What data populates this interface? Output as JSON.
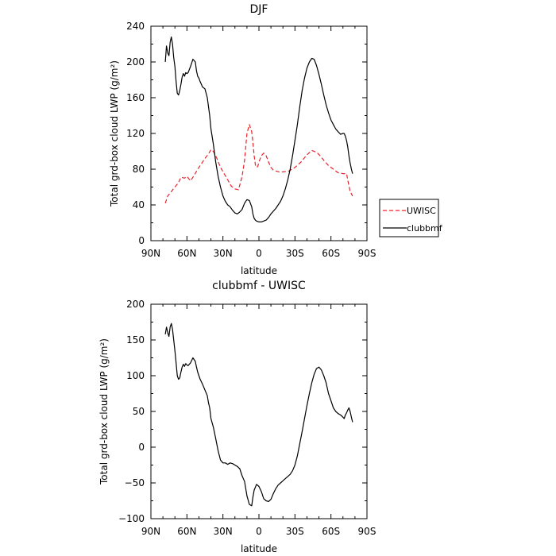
{
  "chart_data": [
    {
      "type": "line",
      "title": "DJF",
      "xlabel": "latitude",
      "ylabel": "Total grd-box cloud LWP (g/m²)",
      "ylim": [
        0,
        240
      ],
      "xlim": [
        90,
        -90
      ],
      "xticks": [
        90,
        60,
        30,
        0,
        -30,
        -60,
        -90
      ],
      "xtick_labels": [
        "90N",
        "60N",
        "30N",
        "0",
        "30S",
        "60S",
        "90S"
      ],
      "yticks": [
        0,
        40,
        80,
        120,
        160,
        200,
        240
      ],
      "ytick_labels": [
        "0",
        "40",
        "80",
        "120",
        "160",
        "200",
        "240"
      ],
      "legend_position": "outside-right",
      "series": [
        {
          "name": "UWISC",
          "color": "#e8232b",
          "dash": "dashed",
          "x": [
            78,
            76,
            73,
            70,
            67,
            65,
            62,
            60,
            57,
            54,
            51,
            48,
            45,
            42,
            40,
            38,
            35,
            32,
            29,
            26,
            23,
            20,
            17,
            14,
            12,
            10,
            8,
            6,
            5,
            4,
            3,
            2,
            1,
            0,
            -2,
            -4,
            -6,
            -8,
            -10,
            -12,
            -14,
            -17,
            -20,
            -25,
            -30,
            -35,
            -40,
            -44,
            -48,
            -51,
            -54,
            -58,
            -62,
            -66,
            -70,
            -73,
            -74,
            -76,
            -78
          ],
          "y": [
            42,
            50,
            55,
            60,
            65,
            71,
            70,
            72,
            67,
            73,
            80,
            86,
            92,
            97,
            102,
            100,
            92,
            82,
            75,
            68,
            61,
            58,
            57,
            72,
            90,
            120,
            130,
            122,
            110,
            95,
            85,
            82,
            83,
            88,
            95,
            98,
            95,
            88,
            82,
            79,
            78,
            77,
            77,
            78,
            82,
            88,
            96,
            101,
            99,
            95,
            90,
            84,
            80,
            76,
            75,
            75,
            68,
            55,
            50
          ]
        },
        {
          "name": "clubbmf",
          "color": "#000000",
          "dash": "solid",
          "x": [
            78,
            77,
            76,
            75,
            74,
            73,
            72,
            71,
            70,
            69,
            68,
            67,
            66,
            65,
            64,
            63,
            62,
            61,
            60,
            59,
            57,
            55,
            53,
            52,
            51,
            50,
            49,
            47,
            45,
            43,
            42,
            41,
            40,
            38,
            36,
            34,
            32,
            30,
            28,
            26,
            24,
            22,
            20,
            18,
            16,
            14,
            12,
            10,
            8,
            6,
            5,
            4,
            3,
            2,
            0,
            -2,
            -4,
            -6,
            -8,
            -10,
            -12,
            -14,
            -16,
            -18,
            -20,
            -22,
            -24,
            -26,
            -28,
            -30,
            -32,
            -34,
            -36,
            -38,
            -40,
            -42,
            -44,
            -46,
            -48,
            -50,
            -52,
            -54,
            -56,
            -58,
            -60,
            -62,
            -64,
            -66,
            -68,
            -70,
            -71,
            -72,
            -73,
            -74,
            -75,
            -76,
            -77,
            -78
          ],
          "y": [
            200,
            218,
            210,
            207,
            222,
            228,
            220,
            205,
            195,
            178,
            165,
            163,
            168,
            175,
            183,
            187,
            184,
            188,
            187,
            188,
            195,
            203,
            200,
            190,
            184,
            182,
            178,
            172,
            170,
            160,
            150,
            140,
            125,
            108,
            88,
            72,
            60,
            50,
            44,
            40,
            38,
            34,
            31,
            30,
            32,
            35,
            42,
            46,
            45,
            38,
            30,
            25,
            23,
            22,
            21,
            21,
            22,
            23,
            26,
            30,
            33,
            36,
            40,
            44,
            50,
            58,
            68,
            80,
            95,
            112,
            130,
            150,
            168,
            182,
            193,
            200,
            204,
            203,
            196,
            186,
            175,
            163,
            152,
            143,
            135,
            130,
            125,
            122,
            119,
            120,
            120,
            117,
            112,
            105,
            95,
            87,
            80,
            75
          ]
        }
      ]
    },
    {
      "type": "line",
      "title": "clubbmf - UWISC",
      "xlabel": "latitude",
      "ylabel": "Total grd-box cloud LWP (g/m²)",
      "ylim": [
        -100,
        200
      ],
      "xlim": [
        90,
        -90
      ],
      "xticks": [
        90,
        60,
        30,
        0,
        -30,
        -60,
        -90
      ],
      "xtick_labels": [
        "90N",
        "60N",
        "30N",
        "0",
        "30S",
        "60S",
        "90S"
      ],
      "yticks": [
        -100,
        -50,
        0,
        50,
        100,
        150,
        200
      ],
      "ytick_labels": [
        "−100",
        "−50",
        "0",
        "50",
        "100",
        "150",
        "200"
      ],
      "series": [
        {
          "color": "#000000",
          "dash": "solid",
          "x": [
            78,
            77,
            76,
            75,
            74,
            73,
            72,
            71,
            70,
            69,
            68,
            67,
            66,
            65,
            64,
            63,
            62,
            61,
            60,
            59,
            57,
            55,
            53,
            52,
            51,
            50,
            49,
            47,
            45,
            43,
            42,
            41,
            40,
            38,
            36,
            34,
            32,
            30,
            28,
            26,
            24,
            22,
            20,
            18,
            16,
            14,
            12,
            10,
            8,
            6,
            5,
            4,
            3,
            2,
            0,
            -2,
            -4,
            -6,
            -8,
            -10,
            -12,
            -14,
            -16,
            -18,
            -20,
            -22,
            -24,
            -26,
            -28,
            -30,
            -32,
            -34,
            -36,
            -38,
            -40,
            -42,
            -44,
            -46,
            -48,
            -50,
            -52,
            -54,
            -56,
            -58,
            -60,
            -62,
            -64,
            -66,
            -68,
            -70,
            -71,
            -72,
            -73,
            -74,
            -75,
            -76,
            -77,
            -78
          ],
          "y": [
            158,
            168,
            160,
            155,
            168,
            173,
            165,
            150,
            135,
            118,
            100,
            95,
            97,
            105,
            112,
            116,
            113,
            117,
            115,
            114,
            118,
            125,
            120,
            112,
            105,
            100,
            95,
            88,
            80,
            72,
            62,
            55,
            40,
            28,
            12,
            -5,
            -18,
            -22,
            -22,
            -24,
            -22,
            -23,
            -25,
            -27,
            -30,
            -40,
            -48,
            -68,
            -80,
            -82,
            -70,
            -60,
            -56,
            -52,
            -55,
            -62,
            -72,
            -75,
            -76,
            -73,
            -65,
            -58,
            -53,
            -50,
            -47,
            -44,
            -41,
            -38,
            -33,
            -25,
            -12,
            5,
            22,
            40,
            58,
            75,
            90,
            102,
            110,
            112,
            108,
            100,
            90,
            75,
            65,
            55,
            50,
            47,
            45,
            42,
            40,
            45,
            48,
            52,
            55,
            50,
            42,
            35
          ]
        }
      ]
    }
  ]
}
